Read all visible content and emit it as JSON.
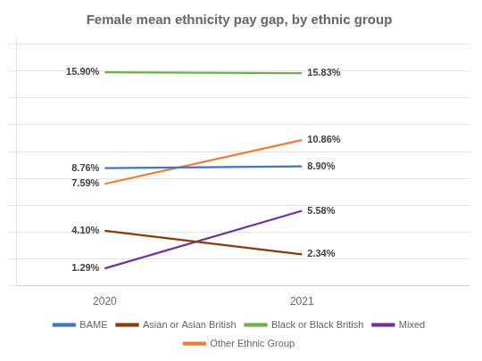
{
  "chart_data": {
    "type": "line",
    "title": "Female mean ethnicity pay gap, by ethnic group",
    "x": [
      2020,
      2021
    ],
    "series": [
      {
        "name": "BAME",
        "color": "#4472C4",
        "values": [
          8.76,
          8.9
        ],
        "value_labels": [
          "8.76%",
          "8.90%"
        ]
      },
      {
        "name": "Asian or Asian British",
        "color": "#843C0C",
        "values": [
          4.1,
          2.34
        ],
        "value_labels": [
          "4.10%",
          "2.34%"
        ]
      },
      {
        "name": "Black or Black British",
        "color": "#70AD47",
        "values": [
          15.9,
          15.83
        ],
        "value_labels": [
          "15.90%",
          "15.83%"
        ]
      },
      {
        "name": "Mixed",
        "color": "#7030A0",
        "values": [
          1.29,
          5.58
        ],
        "value_labels": [
          "1.29%",
          "5.58%"
        ]
      },
      {
        "name": "Other Ethnic Group",
        "color": "#ED7D31",
        "values": [
          7.59,
          10.86
        ],
        "value_labels": [
          "7.59%",
          "10.86%"
        ]
      }
    ],
    "xlim": [
      2019.55,
      2021.85
    ],
    "xticks": [
      2020,
      2021
    ],
    "ylim": [
      0.0,
      18.5
    ],
    "yticks": [
      0,
      2,
      4,
      6,
      8,
      10,
      12,
      14,
      16,
      18
    ],
    "grid": true,
    "tick_labels": "x",
    "legend": "bottom",
    "data_labels": true
  }
}
